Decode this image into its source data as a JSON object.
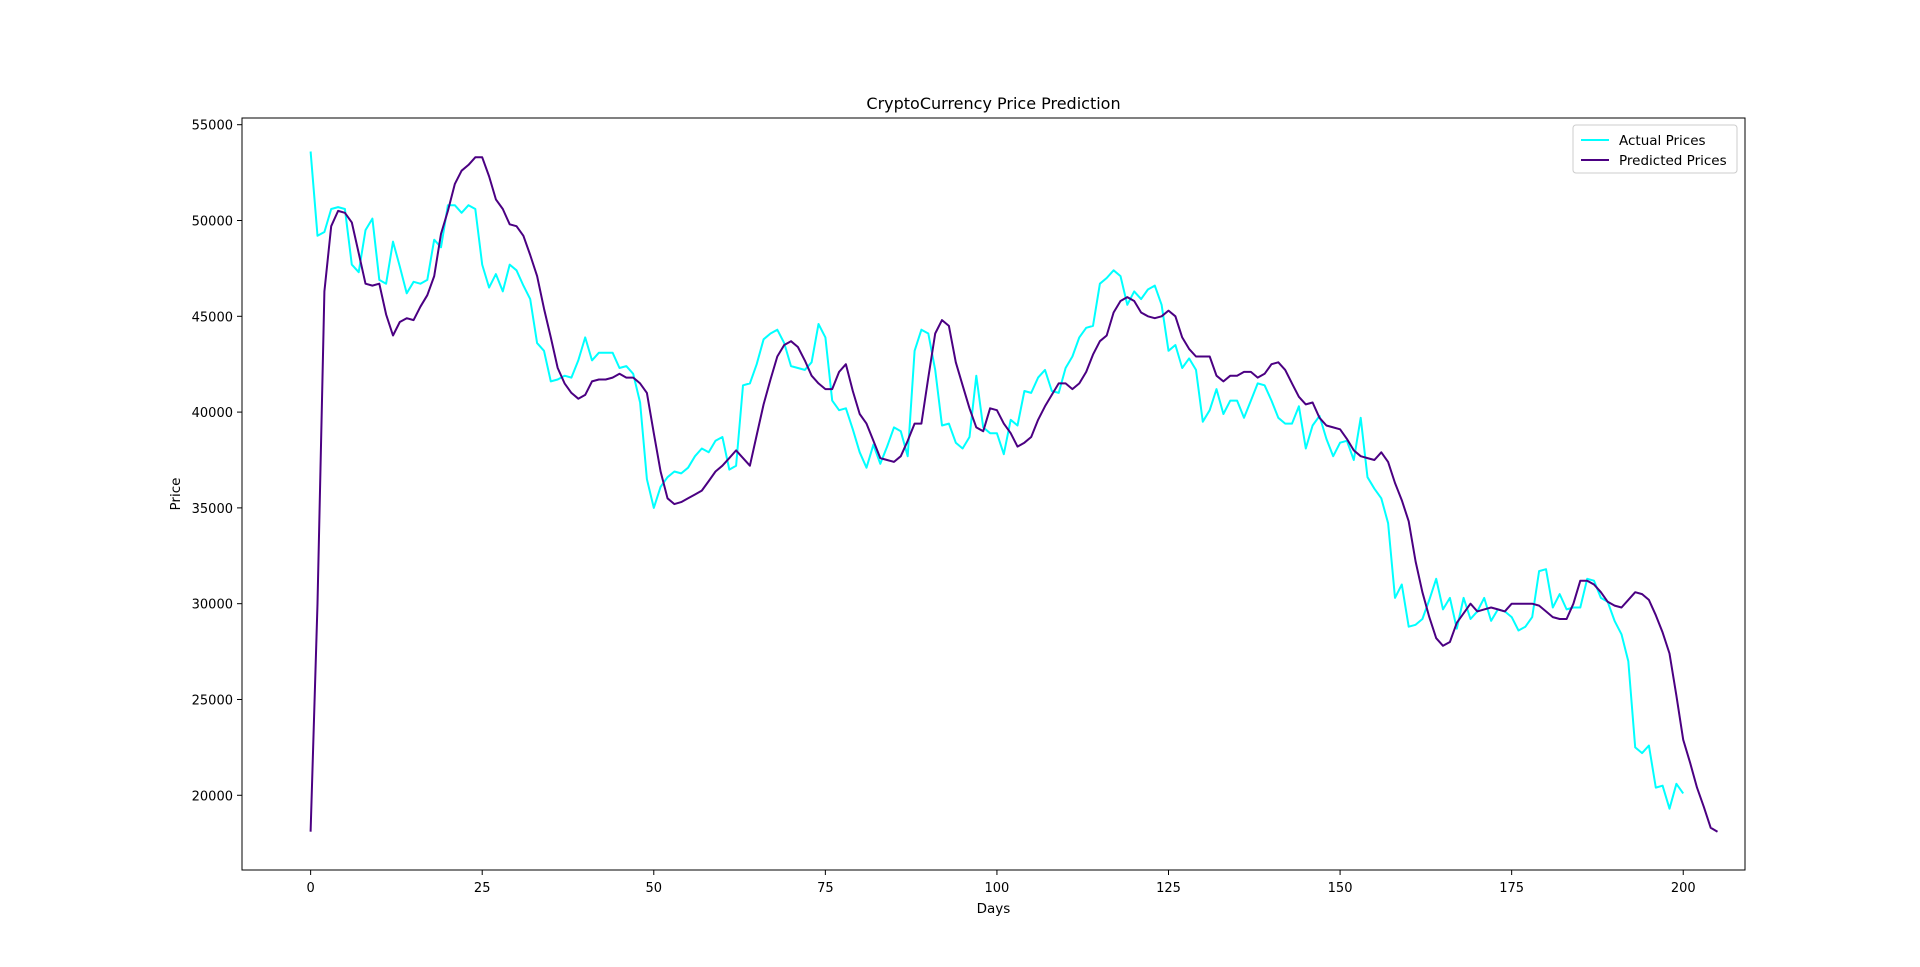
{
  "chart_data": {
    "type": "line",
    "title": "CryptoCurrency Price Prediction",
    "xlabel": "Days",
    "ylabel": "Price",
    "xlim": [
      -10,
      209
    ],
    "ylim": [
      16100,
      55350
    ],
    "xticks": [
      0,
      25,
      50,
      75,
      100,
      125,
      150,
      175,
      200
    ],
    "yticks": [
      20000,
      25000,
      30000,
      35000,
      40000,
      45000,
      50000,
      55000
    ],
    "grid": false,
    "legend_position": "top-right",
    "series": [
      {
        "name": "Actual Prices",
        "color": "#00ffff",
        "values": [
          53600,
          49200,
          49400,
          50600,
          50700,
          50600,
          47700,
          47300,
          49500,
          50100,
          46900,
          46700,
          48900,
          47600,
          46200,
          46800,
          46700,
          46900,
          49000,
          48600,
          50800,
          50800,
          50400,
          50800,
          50600,
          47700,
          46500,
          47200,
          46300,
          47700,
          47400,
          46600,
          45900,
          43600,
          43200,
          41600,
          41700,
          41900,
          41800,
          42700,
          43900,
          42700,
          43100,
          43100,
          43100,
          42300,
          42400,
          42000,
          40500,
          36500,
          35000,
          36100,
          36600,
          36900,
          36800,
          37100,
          37700,
          38100,
          37900,
          38500,
          38700,
          37000,
          37200,
          41400,
          41500,
          42500,
          43800,
          44100,
          44300,
          43600,
          42400,
          42300,
          42200,
          42600,
          44600,
          43900,
          40600,
          40100,
          40200,
          39100,
          37900,
          37100,
          38300,
          37300,
          38200,
          39200,
          39000,
          37700,
          43200,
          44300,
          44100,
          42200,
          39300,
          39400,
          38400,
          38100,
          38700,
          41900,
          39200,
          38900,
          38900,
          37800,
          39600,
          39300,
          41100,
          41000,
          41800,
          42200,
          41100,
          41000,
          42300,
          42900,
          43900,
          44400,
          44500,
          46700,
          47000,
          47400,
          47100,
          45600,
          46300,
          45900,
          46400,
          46600,
          45600,
          43200,
          43500,
          42300,
          42800,
          42200,
          39500,
          40100,
          41200,
          39900,
          40600,
          40600,
          39700,
          40600,
          41500,
          41400,
          40600,
          39700,
          39400,
          39400,
          40300,
          38100,
          39300,
          39800,
          38600,
          37700,
          38400,
          38500,
          37500,
          39700,
          36600,
          36000,
          35500,
          34200,
          30300,
          31000,
          28800,
          28900,
          29200,
          30200,
          31300,
          29700,
          30300,
          28700,
          30300,
          29200,
          29600,
          30300,
          29100,
          29700,
          29600,
          29300,
          28600,
          28800,
          29300,
          31700,
          31800,
          29800,
          30500,
          29700,
          29800,
          29800,
          31300,
          31200,
          30300,
          30100,
          29100,
          28400,
          27000,
          22500,
          22200,
          22600,
          20400,
          20500,
          19300,
          20600,
          20100
        ]
      },
      {
        "name": "Predicted Prices",
        "color": "#4b0082",
        "values": [
          18100,
          30000,
          46300,
          49700,
          50500,
          50400,
          49900,
          48300,
          46700,
          46600,
          46700,
          45100,
          44000,
          44700,
          44900,
          44800,
          45500,
          46100,
          47100,
          49300,
          50500,
          51900,
          52600,
          52900,
          53300,
          53300,
          52300,
          51100,
          50600,
          49800,
          49700,
          49200,
          48200,
          47100,
          45400,
          43900,
          42300,
          41500,
          41000,
          40700,
          40900,
          41600,
          41700,
          41700,
          41800,
          42000,
          41800,
          41800,
          41500,
          41000,
          38900,
          36900,
          35500,
          35200,
          35300,
          35500,
          35700,
          35900,
          36400,
          36900,
          37200,
          37600,
          38000,
          37600,
          37200,
          38800,
          40400,
          41700,
          42900,
          43500,
          43700,
          43400,
          42700,
          41900,
          41500,
          41200,
          41200,
          42100,
          42500,
          41100,
          39900,
          39400,
          38500,
          37600,
          37500,
          37400,
          37700,
          38500,
          39400,
          39400,
          41800,
          44100,
          44800,
          44500,
          42600,
          41400,
          40200,
          39200,
          39000,
          40200,
          40100,
          39400,
          38900,
          38200,
          38400,
          38700,
          39600,
          40300,
          40900,
          41500,
          41500,
          41200,
          41500,
          42100,
          43000,
          43700,
          44000,
          45200,
          45800,
          46000,
          45800,
          45200,
          45000,
          44900,
          45000,
          45300,
          45000,
          43900,
          43300,
          42900,
          42900,
          42900,
          41900,
          41600,
          41900,
          41900,
          42100,
          42100,
          41800,
          42000,
          42500,
          42600,
          42200,
          41500,
          40800,
          40400,
          40500,
          39700,
          39300,
          39200,
          39100,
          38600,
          38000,
          37700,
          37600,
          37500,
          37900,
          37400,
          36300,
          35400,
          34300,
          32200,
          30600,
          29300,
          28200,
          27800,
          28000,
          29000,
          29500,
          30000,
          29600,
          29700,
          29800,
          29700,
          29600,
          30000,
          30000,
          30000,
          30000,
          29900,
          29600,
          29300,
          29200,
          29200,
          30000,
          31200,
          31200,
          31000,
          30600,
          30100,
          29900,
          29800,
          30200,
          30600,
          30500,
          30200,
          29400,
          28500,
          27400,
          25200,
          22900,
          21700,
          20400,
          19400,
          18300,
          18100
        ]
      }
    ]
  }
}
